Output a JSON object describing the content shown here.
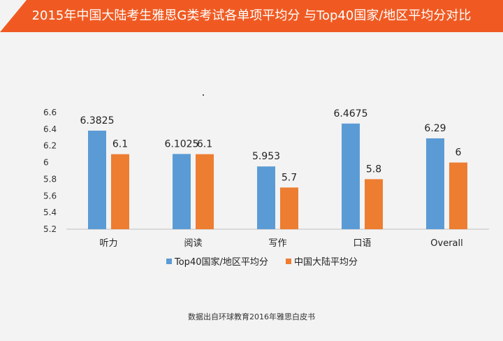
{
  "header": {
    "title": "2015年中国大陆考生雅思G类考试各单项平均分 与Top40国家/地区平均分对比",
    "background_color": "#f05a22"
  },
  "chart_data": {
    "type": "bar",
    "categories": [
      "听力",
      "阅读",
      "写作",
      "口语",
      "Overall"
    ],
    "series": [
      {
        "name": "Top40国家/地区平均分",
        "values": [
          6.3825,
          6.1025,
          5.953,
          6.4675,
          6.29
        ],
        "labels": [
          "6.3825",
          "6.1025",
          "5.953",
          "6.4675",
          "6.29"
        ],
        "color": "#5b9bd5"
      },
      {
        "name": "中国大陆平均分",
        "values": [
          6.1,
          6.1,
          5.7,
          5.8,
          6
        ],
        "labels": [
          "6.1",
          "6.1",
          "5.7",
          "5.8",
          "6"
        ],
        "color": "#ed7d31"
      }
    ],
    "ylim": [
      5.2,
      6.6
    ],
    "yticks": [
      "5.2",
      "5.4",
      "5.6",
      "5.8",
      "6",
      "6.2",
      "6.4",
      "6.6"
    ],
    "xlabel": "",
    "ylabel": "",
    "grid": false,
    "legend_position": "bottom"
  },
  "footer": {
    "source": "数据出自环球教育2016年雅思白皮书"
  }
}
